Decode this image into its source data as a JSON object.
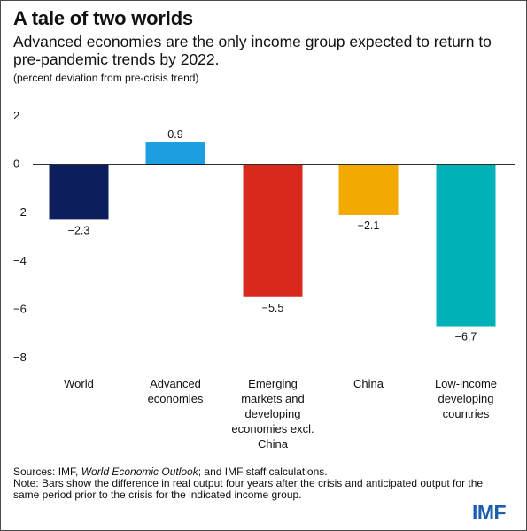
{
  "header": {
    "title": "A tale of two worlds",
    "subtitle": "Advanced economies are the only income group expected to return to pre-pandemic trends by 2022.",
    "unit_note": "(percent deviation from pre-crisis trend)"
  },
  "chart_data": {
    "type": "bar",
    "categories": [
      "World",
      "Advanced economies",
      "Emerging markets and developing economies excl. China",
      "China",
      "Low-income developing countries"
    ],
    "category_lines": [
      [
        "World"
      ],
      [
        "Advanced",
        "economies"
      ],
      [
        "Emerging",
        "markets and",
        "developing",
        "economies excl.",
        "China"
      ],
      [
        "China"
      ],
      [
        "Low-income",
        "developing",
        "countries"
      ]
    ],
    "values": [
      -2.3,
      0.9,
      -5.5,
      -2.1,
      -6.7
    ],
    "value_labels": [
      "−2.3",
      "0.9",
      "−5.5",
      "−2.1",
      "−6.7"
    ],
    "bar_colors": [
      "#0c1f5c",
      "#1c9ee0",
      "#d9291c",
      "#f2a900",
      "#00b2b8"
    ],
    "yticks": [
      2,
      0,
      -2,
      -4,
      -6,
      -8
    ],
    "ytick_labels": [
      "2",
      "0",
      "−2",
      "−4",
      "−6",
      "−8"
    ],
    "ylim": [
      -8,
      2
    ],
    "xlabel": "",
    "ylabel": "",
    "grid": false,
    "zero_line": true
  },
  "footer": {
    "sources_prefix": "Sources: IMF, ",
    "sources_italic": "World Economic Outlook",
    "sources_suffix": "; and IMF staff calculations.",
    "note": "Note: Bars show the difference in real output four years after the crisis and anticipated output for the same period prior to the crisis for the indicated income group.",
    "logo": "IMF"
  }
}
